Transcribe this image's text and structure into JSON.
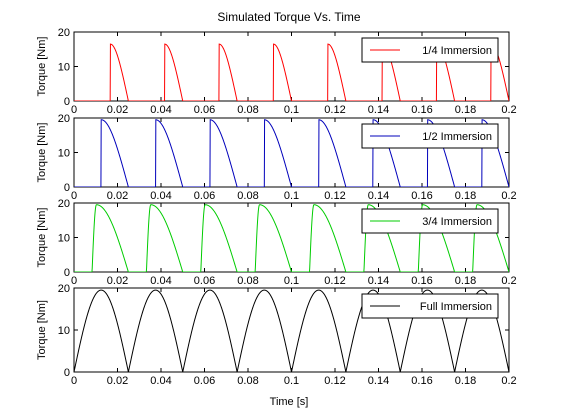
{
  "chart_data": {
    "type": "line",
    "title": "Simulated Torque Vs. Time",
    "xlabel": "Time [s]",
    "ylabel": "Torque [Nm]",
    "xlim": [
      0,
      0.2
    ],
    "ylim": [
      0,
      20
    ],
    "xticks": [
      "0",
      "0.02",
      "0.04",
      "0.06",
      "0.08",
      "0.1",
      "0.12",
      "0.14",
      "0.16",
      "0.18",
      "0.2"
    ],
    "yticks": [
      "0",
      "10",
      "20"
    ],
    "grid": false,
    "legend_position": "top-right",
    "tooth_period": 0.025,
    "panels": [
      {
        "name": "1/4 Immersion",
        "color": "#ff0000",
        "engagement_start": 0.0167,
        "engagement_end": 0.025,
        "peak_torque": 16.5,
        "periods_s": [
          0.025,
          0.025,
          0.025,
          0.025,
          0.025,
          0.025,
          0.025,
          0.025,
          0.025
        ]
      },
      {
        "name": "1/2 Immersion",
        "color": "#0000bb",
        "engagement_start": 0.0125,
        "engagement_end": 0.025,
        "peak_torque": 19.5,
        "periods_s": [
          0.025,
          0.025,
          0.025,
          0.025,
          0.025,
          0.025,
          0.025,
          0.025,
          0.025
        ]
      },
      {
        "name": "3/4 Immersion",
        "color": "#00cc00",
        "engagement_start": 0.0083,
        "engagement_end": 0.025,
        "peak_torque": 19.5,
        "periods_s": [
          0.025,
          0.025,
          0.025,
          0.025,
          0.025,
          0.025,
          0.025,
          0.025,
          0.025
        ]
      },
      {
        "name": "Full Immersion",
        "color": "#000000",
        "engagement_start": 0.0,
        "engagement_end": 0.025,
        "peak_torque": 19.5,
        "periods_s": [
          0.025,
          0.025,
          0.025,
          0.025,
          0.025,
          0.025,
          0.025,
          0.025,
          0.025
        ]
      }
    ]
  }
}
